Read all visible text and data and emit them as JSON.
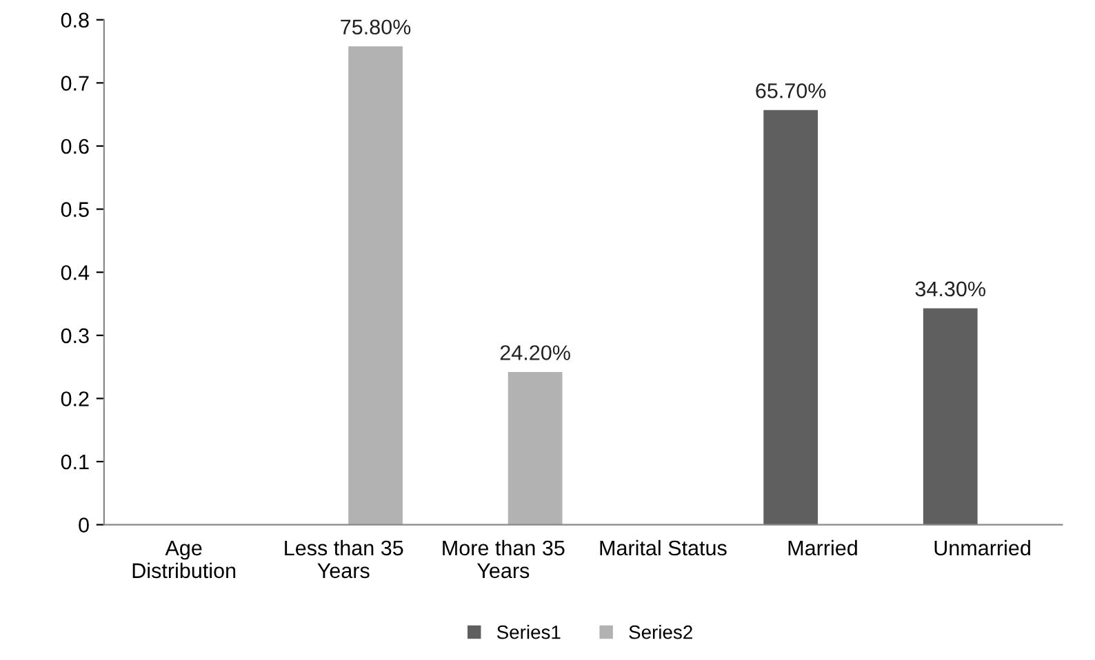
{
  "chart_data": {
    "type": "bar",
    "categories": [
      "Age Distribution",
      "Less than 35 Years",
      "More than 35 Years",
      "Marital Status",
      "Married",
      "Unmarried"
    ],
    "series": [
      {
        "name": "Series1",
        "color": "#5f5f5f",
        "values": [
          null,
          null,
          null,
          null,
          0.657,
          0.343
        ],
        "value_labels": [
          null,
          null,
          null,
          null,
          "65.70%",
          "34.30%"
        ]
      },
      {
        "name": "Series2",
        "color": "#b2b2b2",
        "values": [
          null,
          0.758,
          0.242,
          null,
          null,
          null
        ],
        "value_labels": [
          null,
          "75.80%",
          "24.20%",
          null,
          null,
          null
        ]
      }
    ],
    "ylim": [
      0,
      0.8
    ],
    "yticks": [
      0,
      0.1,
      0.2,
      0.3,
      0.4,
      0.5,
      0.6,
      0.7,
      0.8
    ],
    "grid": false,
    "legend": "bottom"
  }
}
